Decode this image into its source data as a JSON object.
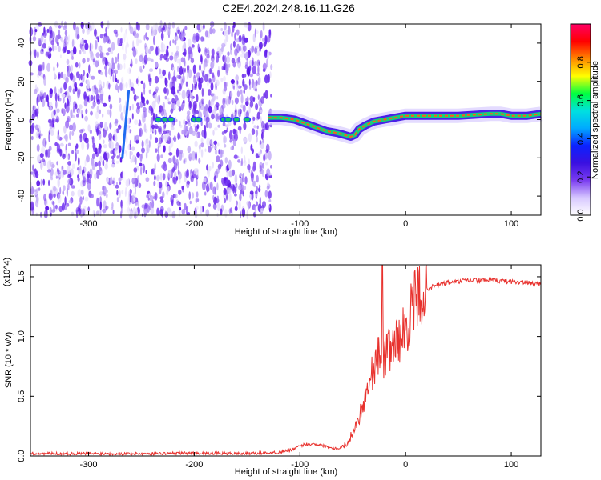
{
  "title": "C2E4.2024.248.16.11.G26",
  "chart_data": [
    {
      "type": "heatmap",
      "xlabel": "Height of straight line (km)",
      "ylabel": "Frequency (Hz)",
      "xlim": [
        -355,
        128
      ],
      "ylim": [
        -50,
        50
      ],
      "xticks": [
        -300,
        -200,
        -100,
        0,
        100
      ],
      "yticks": [
        -40,
        -20,
        0,
        20,
        40
      ],
      "colorbar": {
        "label": "Normalized spectral amplitude",
        "range": [
          0.0,
          1.0
        ],
        "ticks": [
          "0.0",
          "0.2",
          "0.4",
          "0.6",
          "0.8"
        ],
        "colormap": [
          "#ffffff",
          "#d7c8ff",
          "#7a3cf0",
          "#3a10e0",
          "#0b22ff",
          "#00aaff",
          "#00e0e0",
          "#00ff40",
          "#ffff00",
          "#ff8800",
          "#ff0000",
          "#ff0066"
        ]
      },
      "ridge": {
        "x": [
          -130,
          -118,
          -105,
          -95,
          -85,
          -75,
          -65,
          -58,
          -52,
          -48,
          -44,
          -38,
          -30,
          -20,
          -10,
          0,
          20,
          50,
          80,
          90,
          100,
          115,
          128
        ],
        "y": [
          1,
          1,
          0,
          -2,
          -4,
          -6,
          -7,
          -8,
          -9,
          -8,
          -5,
          -3,
          -1,
          0,
          1,
          2,
          2,
          2,
          3,
          3,
          2,
          2,
          3
        ]
      }
    },
    {
      "type": "line",
      "xlabel": "Height of straight line (km)",
      "ylabel": "SNR (10 * v/v)",
      "y_multiplier": "(x10^4)",
      "xlim": [
        -355,
        128
      ],
      "ylim": [
        0.0,
        1.6
      ],
      "xticks": [
        -300,
        -200,
        -100,
        0,
        100
      ],
      "yticks": [
        "0.0",
        "0.5",
        "1.0",
        "1.5"
      ],
      "color": "#e8312d",
      "envelope": {
        "x": [
          -355,
          -300,
          -250,
          -200,
          -150,
          -120,
          -105,
          -95,
          -85,
          -75,
          -65,
          -55,
          -45,
          -40,
          -35,
          -30,
          -25,
          -20,
          -15,
          -10,
          -5,
          0,
          5,
          10,
          15,
          20,
          30,
          40,
          60,
          80,
          100,
          128
        ],
        "y": [
          0.02,
          0.02,
          0.02,
          0.025,
          0.02,
          0.03,
          0.06,
          0.1,
          0.1,
          0.08,
          0.06,
          0.1,
          0.3,
          0.45,
          0.6,
          0.75,
          0.85,
          0.82,
          0.9,
          0.95,
          1.0,
          1.05,
          1.2,
          1.3,
          1.37,
          1.4,
          1.43,
          1.45,
          1.47,
          1.47,
          1.46,
          1.44
        ]
      },
      "peak": {
        "x": -22,
        "y": 1.6
      }
    }
  ]
}
